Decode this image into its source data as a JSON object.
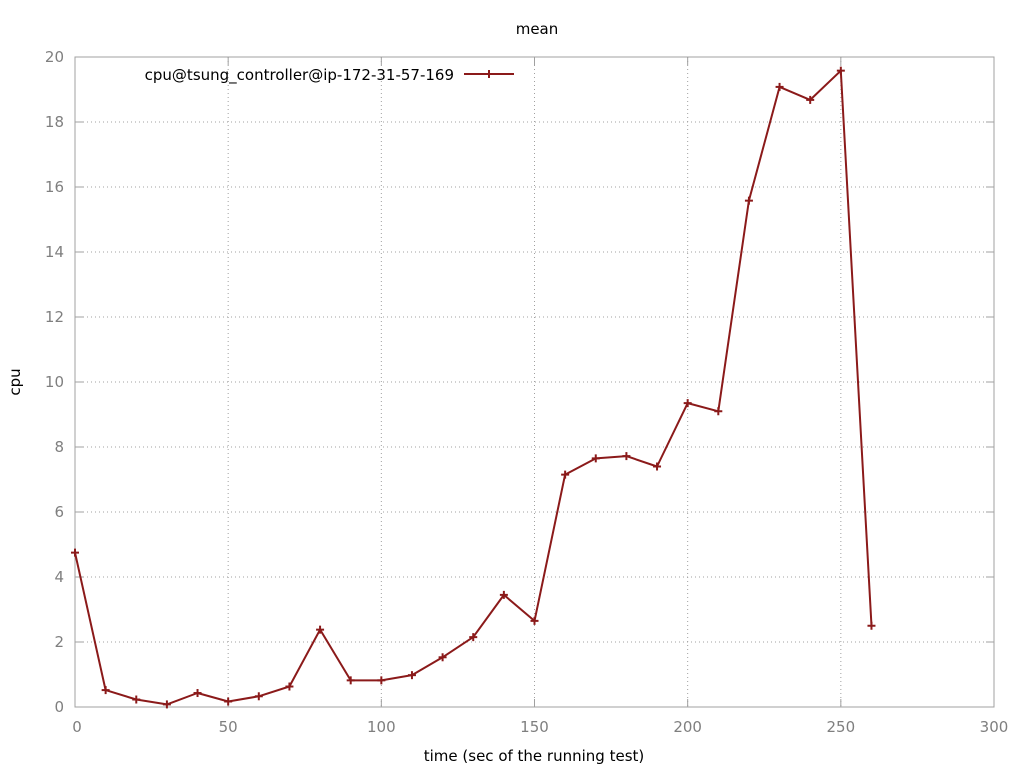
{
  "chart_data": {
    "type": "line",
    "title": "mean",
    "xlabel": "time (sec of the running test)",
    "ylabel": "cpu",
    "xlim": [
      0,
      300
    ],
    "ylim": [
      0,
      20
    ],
    "xticks": [
      0,
      50,
      100,
      150,
      200,
      250,
      300
    ],
    "yticks": [
      0,
      2,
      4,
      6,
      8,
      10,
      12,
      14,
      16,
      18,
      20
    ],
    "xtick_labels": [
      "0",
      "50",
      "100",
      "150",
      "200",
      "250",
      "300"
    ],
    "ytick_labels": [
      "0",
      "2",
      "4",
      "6",
      "8",
      "10",
      "12",
      "14",
      "16",
      "18",
      "20"
    ],
    "grid": true,
    "legend_position": "top-left",
    "series": [
      {
        "name": "cpu@tsung_controller@ip-172-31-57-169",
        "color": "#8b1a1a",
        "marker": "plus",
        "x": [
          0,
          10,
          20,
          30,
          40,
          50,
          60,
          70,
          80,
          90,
          100,
          110,
          120,
          130,
          140,
          150,
          160,
          170,
          180,
          190,
          200,
          210,
          220,
          230,
          240,
          250,
          260
        ],
        "y": [
          4.75,
          0.52,
          0.23,
          0.08,
          0.43,
          0.17,
          0.33,
          0.63,
          2.38,
          0.82,
          0.82,
          0.98,
          1.53,
          2.15,
          3.45,
          2.65,
          7.15,
          7.65,
          7.72,
          7.4,
          9.35,
          9.1,
          15.58,
          19.08,
          18.68,
          19.58,
          2.5
        ]
      }
    ]
  }
}
